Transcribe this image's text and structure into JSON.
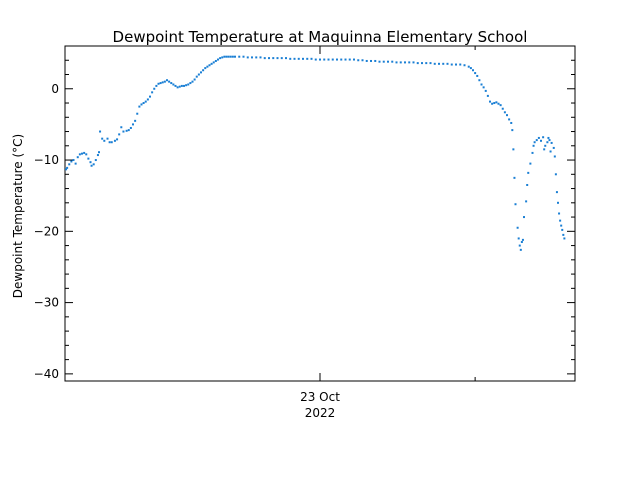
{
  "chart_data": {
    "type": "scatter",
    "title": "Dewpoint Temperature at Maquinna Elementary School",
    "xlabel": "",
    "ylabel": "Dewpoint Temperature (°C)",
    "ylim": [
      -41,
      6
    ],
    "yticks": [
      -40,
      -30,
      -20,
      -10,
      0
    ],
    "xlim": [
      0,
      24
    ],
    "x_unit": "hours from plot start (inferred from axis; 23 Oct tick at 12)",
    "x_tick_labels": [
      {
        "x": 12,
        "line1": "23 Oct",
        "line2": "2022"
      }
    ],
    "x_minor_ticks": [
      0,
      12,
      24
    ],
    "color": "#1a7fd4",
    "series": [
      {
        "points": [
          [
            0.05,
            -11.3
          ],
          [
            0.1,
            -11.1
          ],
          [
            0.2,
            -10.6
          ],
          [
            0.3,
            -10.2
          ],
          [
            0.4,
            -10.0
          ],
          [
            0.5,
            -10.5
          ],
          [
            0.6,
            -9.6
          ],
          [
            0.7,
            -9.2
          ],
          [
            0.8,
            -9.1
          ],
          [
            0.9,
            -9.0
          ],
          [
            1.0,
            -9.2
          ],
          [
            1.1,
            -9.8
          ],
          [
            1.2,
            -10.3
          ],
          [
            1.25,
            -10.8
          ],
          [
            1.35,
            -10.6
          ],
          [
            1.45,
            -10.0
          ],
          [
            1.55,
            -9.3
          ],
          [
            1.6,
            -8.9
          ],
          [
            1.65,
            -6.0
          ],
          [
            1.75,
            -7.0
          ],
          [
            1.85,
            -7.3
          ],
          [
            2.0,
            -7.0
          ],
          [
            2.1,
            -7.5
          ],
          [
            2.2,
            -7.5
          ],
          [
            2.35,
            -7.3
          ],
          [
            2.45,
            -7.1
          ],
          [
            2.55,
            -6.4
          ],
          [
            2.65,
            -5.4
          ],
          [
            2.75,
            -6.0
          ],
          [
            2.9,
            -5.9
          ],
          [
            3.0,
            -5.8
          ],
          [
            3.1,
            -5.5
          ],
          [
            3.2,
            -5.0
          ],
          [
            3.3,
            -4.5
          ],
          [
            3.4,
            -3.5
          ],
          [
            3.5,
            -2.5
          ],
          [
            3.6,
            -2.2
          ],
          [
            3.7,
            -2.0
          ],
          [
            3.8,
            -1.8
          ],
          [
            3.9,
            -1.5
          ],
          [
            4.0,
            -1.1
          ],
          [
            4.1,
            -0.5
          ],
          [
            4.2,
            0.0
          ],
          [
            4.3,
            0.4
          ],
          [
            4.4,
            0.7
          ],
          [
            4.5,
            0.8
          ],
          [
            4.6,
            0.9
          ],
          [
            4.7,
            1.0
          ],
          [
            4.8,
            1.2
          ],
          [
            4.9,
            1.0
          ],
          [
            5.0,
            0.8
          ],
          [
            5.1,
            0.6
          ],
          [
            5.2,
            0.4
          ],
          [
            5.3,
            0.2
          ],
          [
            5.4,
            0.3
          ],
          [
            5.5,
            0.4
          ],
          [
            5.6,
            0.4
          ],
          [
            5.7,
            0.5
          ],
          [
            5.8,
            0.6
          ],
          [
            5.9,
            0.8
          ],
          [
            6.0,
            1.0
          ],
          [
            6.1,
            1.3
          ],
          [
            6.2,
            1.7
          ],
          [
            6.3,
            2.0
          ],
          [
            6.4,
            2.3
          ],
          [
            6.5,
            2.6
          ],
          [
            6.6,
            2.9
          ],
          [
            6.7,
            3.1
          ],
          [
            6.8,
            3.3
          ],
          [
            6.9,
            3.5
          ],
          [
            7.0,
            3.7
          ],
          [
            7.1,
            3.9
          ],
          [
            7.2,
            4.1
          ],
          [
            7.3,
            4.3
          ],
          [
            7.4,
            4.4
          ],
          [
            7.5,
            4.5
          ],
          [
            7.6,
            4.5
          ],
          [
            7.7,
            4.5
          ],
          [
            7.8,
            4.5
          ],
          [
            7.9,
            4.5
          ],
          [
            8.0,
            4.5
          ],
          [
            8.2,
            4.5
          ],
          [
            8.4,
            4.5
          ],
          [
            8.6,
            4.4
          ],
          [
            8.8,
            4.4
          ],
          [
            9.0,
            4.4
          ],
          [
            9.2,
            4.4
          ],
          [
            9.4,
            4.3
          ],
          [
            9.6,
            4.3
          ],
          [
            9.8,
            4.3
          ],
          [
            10.0,
            4.3
          ],
          [
            10.2,
            4.3
          ],
          [
            10.4,
            4.3
          ],
          [
            10.6,
            4.2
          ],
          [
            10.8,
            4.2
          ],
          [
            11.0,
            4.2
          ],
          [
            11.2,
            4.2
          ],
          [
            11.4,
            4.2
          ],
          [
            11.6,
            4.2
          ],
          [
            11.8,
            4.1
          ],
          [
            12.0,
            4.1
          ],
          [
            12.2,
            4.1
          ],
          [
            12.4,
            4.1
          ],
          [
            12.6,
            4.1
          ],
          [
            12.8,
            4.1
          ],
          [
            13.0,
            4.1
          ],
          [
            13.2,
            4.1
          ],
          [
            13.4,
            4.1
          ],
          [
            13.6,
            4.1
          ],
          [
            13.8,
            4.0
          ],
          [
            14.0,
            4.0
          ],
          [
            14.2,
            3.9
          ],
          [
            14.4,
            3.9
          ],
          [
            14.6,
            3.9
          ],
          [
            14.8,
            3.8
          ],
          [
            15.0,
            3.8
          ],
          [
            15.2,
            3.8
          ],
          [
            15.4,
            3.8
          ],
          [
            15.6,
            3.7
          ],
          [
            15.8,
            3.7
          ],
          [
            16.0,
            3.7
          ],
          [
            16.2,
            3.7
          ],
          [
            16.4,
            3.7
          ],
          [
            16.6,
            3.6
          ],
          [
            16.8,
            3.6
          ],
          [
            17.0,
            3.6
          ],
          [
            17.2,
            3.6
          ],
          [
            17.4,
            3.5
          ],
          [
            17.6,
            3.5
          ],
          [
            17.8,
            3.5
          ],
          [
            18.0,
            3.5
          ],
          [
            18.2,
            3.4
          ],
          [
            18.4,
            3.4
          ],
          [
            18.6,
            3.4
          ],
          [
            18.8,
            3.3
          ],
          [
            19.0,
            3.1
          ],
          [
            19.1,
            2.9
          ],
          [
            19.2,
            2.6
          ],
          [
            19.3,
            2.2
          ],
          [
            19.4,
            1.8
          ],
          [
            19.5,
            1.2
          ],
          [
            19.6,
            0.6
          ],
          [
            19.7,
            0.2
          ],
          [
            19.8,
            -0.3
          ],
          [
            19.9,
            -1.0
          ],
          [
            20.0,
            -1.8
          ],
          [
            20.1,
            -2.1
          ],
          [
            20.2,
            -2.0
          ],
          [
            20.3,
            -1.9
          ],
          [
            20.4,
            -2.1
          ],
          [
            20.5,
            -2.3
          ],
          [
            20.6,
            -2.8
          ],
          [
            20.7,
            -3.3
          ],
          [
            20.8,
            -3.7
          ],
          [
            20.9,
            -4.3
          ],
          [
            21.0,
            -4.8
          ],
          [
            21.05,
            -5.8
          ],
          [
            21.1,
            -8.5
          ],
          [
            21.15,
            -12.5
          ],
          [
            21.2,
            -16.2
          ],
          [
            21.3,
            -19.5
          ],
          [
            21.35,
            -21.0
          ],
          [
            21.4,
            -22.0
          ],
          [
            21.45,
            -22.6
          ],
          [
            21.5,
            -21.5
          ],
          [
            21.55,
            -21.2
          ],
          [
            21.6,
            -18.0
          ],
          [
            21.7,
            -15.8
          ],
          [
            21.75,
            -13.5
          ],
          [
            21.8,
            -11.8
          ],
          [
            21.9,
            -10.5
          ],
          [
            22.0,
            -9.0
          ],
          [
            22.05,
            -8.0
          ],
          [
            22.1,
            -7.5
          ],
          [
            22.2,
            -7.2
          ],
          [
            22.3,
            -6.9
          ],
          [
            22.4,
            -7.3
          ],
          [
            22.5,
            -6.8
          ],
          [
            22.55,
            -8.5
          ],
          [
            22.6,
            -8.0
          ],
          [
            22.7,
            -7.5
          ],
          [
            22.75,
            -6.9
          ],
          [
            22.8,
            -7.2
          ],
          [
            22.85,
            -8.8
          ],
          [
            22.9,
            -7.6
          ],
          [
            23.0,
            -8.3
          ],
          [
            23.05,
            -9.5
          ],
          [
            23.1,
            -12.0
          ],
          [
            23.15,
            -14.5
          ],
          [
            23.2,
            -16.0
          ],
          [
            23.25,
            -17.5
          ],
          [
            23.3,
            -18.5
          ],
          [
            23.35,
            -19.2
          ],
          [
            23.4,
            -19.8
          ],
          [
            23.45,
            -20.5
          ],
          [
            23.5,
            -21.0
          ]
        ]
      }
    ]
  }
}
